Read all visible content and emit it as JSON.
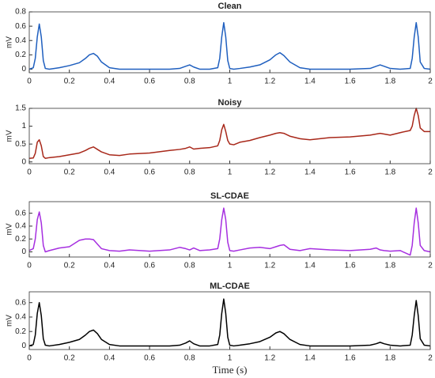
{
  "chart_data": [
    {
      "type": "line",
      "title": "Clean",
      "ylabel": "mV",
      "color": "#1f5fbf",
      "x": [
        0,
        0.02,
        0.03,
        0.04,
        0.05,
        0.06,
        0.07,
        0.08,
        0.1,
        0.15,
        0.2,
        0.25,
        0.28,
        0.3,
        0.32,
        0.34,
        0.36,
        0.4,
        0.45,
        0.5,
        0.6,
        0.7,
        0.75,
        0.78,
        0.8,
        0.82,
        0.85,
        0.9,
        0.94,
        0.95,
        0.96,
        0.97,
        0.98,
        0.99,
        1.0,
        1.02,
        1.05,
        1.1,
        1.15,
        1.2,
        1.23,
        1.25,
        1.27,
        1.3,
        1.35,
        1.4,
        1.5,
        1.6,
        1.7,
        1.73,
        1.75,
        1.77,
        1.8,
        1.85,
        1.9,
        1.91,
        1.92,
        1.93,
        1.94,
        1.95,
        1.97,
        2.0
      ],
      "values": [
        0,
        0.02,
        0.15,
        0.45,
        0.63,
        0.45,
        0.12,
        0.01,
        0,
        0.02,
        0.05,
        0.09,
        0.15,
        0.2,
        0.22,
        0.18,
        0.1,
        0.02,
        0,
        0,
        0,
        0,
        0.01,
        0.04,
        0.06,
        0.03,
        0,
        0,
        0.02,
        0.15,
        0.45,
        0.65,
        0.45,
        0.12,
        0.01,
        0,
        0.01,
        0.03,
        0.06,
        0.13,
        0.2,
        0.23,
        0.19,
        0.1,
        0.02,
        0,
        0,
        0,
        0.01,
        0.04,
        0.06,
        0.04,
        0.01,
        0,
        0.01,
        0.15,
        0.45,
        0.65,
        0.45,
        0.1,
        0.01,
        0
      ],
      "xlim": [
        0,
        2
      ],
      "xticks": [
        0,
        0.2,
        0.4,
        0.6,
        0.8,
        1,
        1.2,
        1.4,
        1.6,
        1.8,
        2
      ],
      "ylim": [
        -0.05,
        0.8
      ],
      "yticks": [
        0,
        0.2,
        0.4,
        0.6,
        0.8
      ]
    },
    {
      "type": "line",
      "title": "Noisy",
      "ylabel": "mV",
      "color": "#a8281a",
      "x": [
        0,
        0.02,
        0.03,
        0.04,
        0.05,
        0.06,
        0.07,
        0.08,
        0.1,
        0.15,
        0.2,
        0.25,
        0.28,
        0.3,
        0.32,
        0.34,
        0.36,
        0.4,
        0.45,
        0.5,
        0.6,
        0.7,
        0.75,
        0.78,
        0.8,
        0.82,
        0.85,
        0.9,
        0.94,
        0.95,
        0.96,
        0.97,
        0.98,
        0.99,
        1.0,
        1.02,
        1.05,
        1.1,
        1.15,
        1.2,
        1.23,
        1.25,
        1.27,
        1.3,
        1.35,
        1.4,
        1.5,
        1.6,
        1.7,
        1.73,
        1.75,
        1.77,
        1.8,
        1.85,
        1.9,
        1.91,
        1.92,
        1.93,
        1.94,
        1.95,
        1.97,
        2.0
      ],
      "values": [
        0.1,
        0.11,
        0.24,
        0.55,
        0.62,
        0.45,
        0.15,
        0.1,
        0.12,
        0.15,
        0.2,
        0.25,
        0.32,
        0.38,
        0.42,
        0.35,
        0.28,
        0.2,
        0.18,
        0.22,
        0.25,
        0.32,
        0.35,
        0.38,
        0.42,
        0.36,
        0.38,
        0.4,
        0.45,
        0.6,
        0.9,
        1.05,
        0.85,
        0.6,
        0.5,
        0.48,
        0.55,
        0.6,
        0.68,
        0.75,
        0.8,
        0.82,
        0.8,
        0.72,
        0.65,
        0.62,
        0.68,
        0.7,
        0.75,
        0.78,
        0.8,
        0.78,
        0.75,
        0.82,
        0.88,
        1.0,
        1.3,
        1.5,
        1.3,
        0.95,
        0.85,
        0.85
      ],
      "xlim": [
        0,
        2
      ],
      "xticks": [
        0,
        0.2,
        0.4,
        0.6,
        0.8,
        1,
        1.2,
        1.4,
        1.6,
        1.8,
        2
      ],
      "ylim": [
        -0.05,
        1.5
      ],
      "yticks": [
        0,
        0.5,
        1,
        1.5
      ]
    },
    {
      "type": "line",
      "title": "SL-CDAE",
      "ylabel": "mV",
      "color": "#a62fe0",
      "x": [
        0,
        0.02,
        0.03,
        0.04,
        0.05,
        0.06,
        0.07,
        0.08,
        0.1,
        0.15,
        0.2,
        0.25,
        0.28,
        0.3,
        0.32,
        0.34,
        0.36,
        0.4,
        0.45,
        0.5,
        0.6,
        0.7,
        0.75,
        0.78,
        0.8,
        0.82,
        0.85,
        0.9,
        0.94,
        0.95,
        0.96,
        0.97,
        0.98,
        0.99,
        1.0,
        1.02,
        1.05,
        1.1,
        1.15,
        1.2,
        1.23,
        1.25,
        1.27,
        1.3,
        1.35,
        1.4,
        1.5,
        1.6,
        1.7,
        1.73,
        1.75,
        1.77,
        1.8,
        1.85,
        1.9,
        1.91,
        1.92,
        1.93,
        1.94,
        1.95,
        1.97,
        2.0
      ],
      "values": [
        0.02,
        0.05,
        0.2,
        0.5,
        0.62,
        0.45,
        0.1,
        0,
        0.02,
        0.06,
        0.08,
        0.18,
        0.2,
        0.2,
        0.19,
        0.12,
        0.05,
        0.02,
        0.01,
        0.03,
        0.01,
        0.03,
        0.07,
        0.05,
        0.03,
        0.06,
        0.02,
        0.03,
        0.05,
        0.2,
        0.5,
        0.68,
        0.5,
        0.15,
        0.02,
        0.01,
        0.03,
        0.06,
        0.07,
        0.05,
        0.08,
        0.1,
        0.11,
        0.04,
        0.02,
        0.05,
        0.03,
        0.02,
        0.04,
        0.06,
        0.03,
        0.02,
        0.01,
        0.02,
        -0.05,
        0.1,
        0.45,
        0.68,
        0.45,
        0.1,
        0.02,
        0
      ],
      "xlim": [
        0,
        2
      ],
      "xticks": [
        0,
        0.2,
        0.4,
        0.6,
        0.8,
        1,
        1.2,
        1.4,
        1.6,
        1.8,
        2
      ],
      "ylim": [
        -0.08,
        0.78
      ],
      "yticks": [
        0,
        0.2,
        0.4,
        0.6
      ]
    },
    {
      "type": "line",
      "title": "ML-CDAE",
      "ylabel": "mV",
      "xlabel": "Time (s)",
      "color": "#000000",
      "x": [
        0,
        0.02,
        0.03,
        0.04,
        0.05,
        0.06,
        0.07,
        0.08,
        0.1,
        0.15,
        0.2,
        0.25,
        0.28,
        0.3,
        0.32,
        0.34,
        0.36,
        0.4,
        0.45,
        0.5,
        0.6,
        0.7,
        0.75,
        0.78,
        0.8,
        0.82,
        0.85,
        0.9,
        0.94,
        0.95,
        0.96,
        0.97,
        0.98,
        0.99,
        1.0,
        1.02,
        1.05,
        1.1,
        1.15,
        1.2,
        1.23,
        1.25,
        1.27,
        1.3,
        1.35,
        1.4,
        1.5,
        1.6,
        1.7,
        1.73,
        1.75,
        1.77,
        1.8,
        1.85,
        1.9,
        1.91,
        1.92,
        1.93,
        1.94,
        1.95,
        1.97,
        2.0
      ],
      "values": [
        0,
        0.02,
        0.15,
        0.45,
        0.6,
        0.42,
        0.1,
        0.01,
        0,
        0.02,
        0.05,
        0.09,
        0.15,
        0.2,
        0.22,
        0.17,
        0.09,
        0.02,
        0,
        0,
        0,
        0,
        0.01,
        0.04,
        0.07,
        0.03,
        0,
        0,
        0.02,
        0.15,
        0.45,
        0.65,
        0.45,
        0.12,
        0.01,
        0,
        0.01,
        0.03,
        0.06,
        0.12,
        0.18,
        0.2,
        0.17,
        0.09,
        0.02,
        0,
        0,
        0,
        0.01,
        0.03,
        0.05,
        0.03,
        0.01,
        0,
        0.01,
        0.15,
        0.42,
        0.63,
        0.42,
        0.1,
        0.01,
        0
      ],
      "xlim": [
        0,
        2
      ],
      "xticks": [
        0,
        0.2,
        0.4,
        0.6,
        0.8,
        1,
        1.2,
        1.4,
        1.6,
        1.8,
        2
      ],
      "ylim": [
        -0.05,
        0.75
      ],
      "yticks": [
        0,
        0.2,
        0.4,
        0.6
      ]
    }
  ]
}
